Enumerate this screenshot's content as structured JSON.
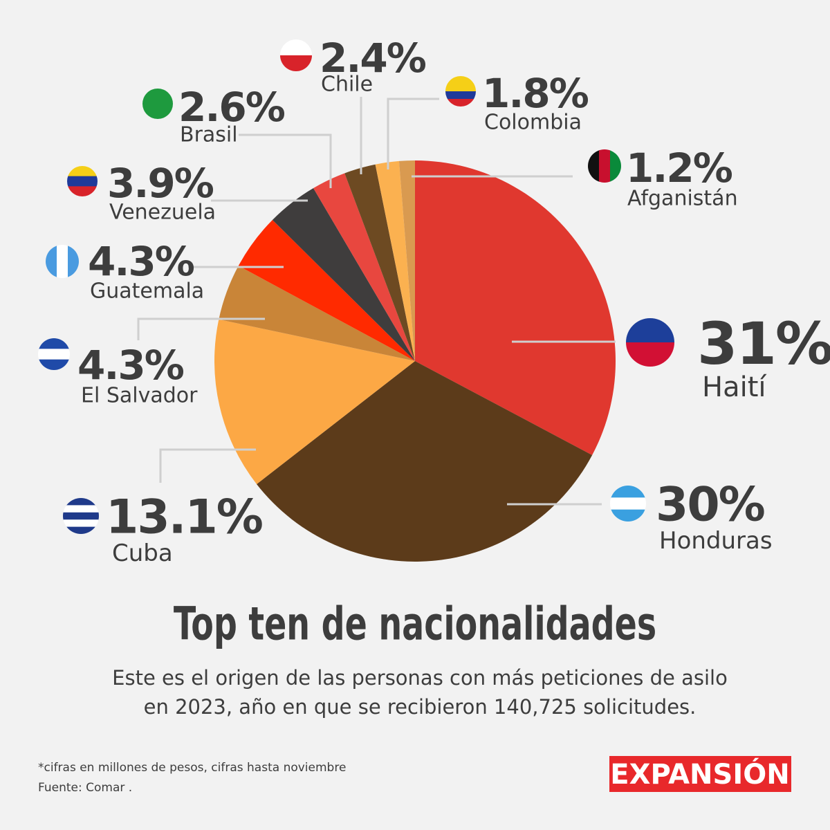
{
  "chart_data": {
    "type": "pie",
    "title": "Top ten de nacionalidades",
    "subtitle": [
      "Este es el origen de las personas con más peticiones de asilo",
      "en 2023, año en que se recibieron 140,725 solicitudes."
    ],
    "categories": [
      "Haití",
      "Honduras",
      "Cuba",
      "El Salvador",
      "Guatemala",
      "Venezuela",
      "Brasil",
      "Chile",
      "Colombia",
      "Afganistán"
    ],
    "values": [
      31,
      30,
      13.1,
      4.3,
      4.3,
      3.9,
      2.6,
      2.4,
      1.8,
      1.2
    ],
    "value_labels": [
      "31%",
      "30%",
      "13.1%",
      "4.3%",
      "4.3%",
      "3.9%",
      "2.6%",
      "2.4%",
      "1.8%",
      "1.2%"
    ],
    "colors": [
      "#e0382f",
      "#5c3b1a",
      "#fca845",
      "#c98538",
      "#ff2a00",
      "#3f3d3d",
      "#e8473f",
      "#6d4a22",
      "#fbb150",
      "#d99a50"
    ],
    "notes": [
      "*cifras en millones de pesos, cifras hasta noviembre",
      "Fuente: Comar ."
    ],
    "logo": "EXPANSIÓN"
  }
}
